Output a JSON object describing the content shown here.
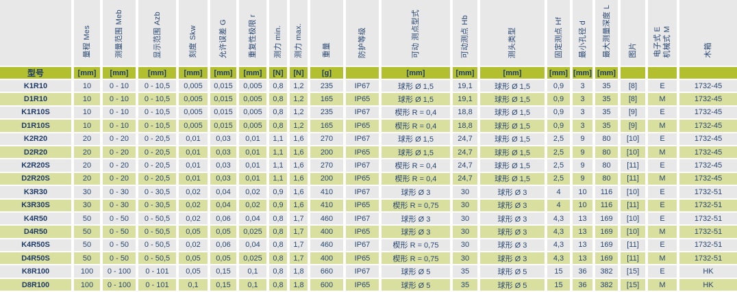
{
  "colors": {
    "header_band": "#b2c030",
    "row_green": "#d9df9e",
    "row_gray": "#e8e8e8",
    "text": "#274672",
    "text_dark": "#1e3a66",
    "gutter": "#ffffff"
  },
  "table": {
    "model_column_title": "型号",
    "columns": [
      {
        "key": "model",
        "label": "",
        "unit": "型号"
      },
      {
        "key": "range-mes",
        "label": "量程 Mes",
        "unit": "[mm]"
      },
      {
        "key": "range-meb",
        "label": "测量范围 Meb",
        "unit": "[mm]"
      },
      {
        "key": "range-azb",
        "label": "显示范围 Azb",
        "unit": "[mm]"
      },
      {
        "key": "scale-skw",
        "label": "刻度 Skw",
        "unit": "[mm]"
      },
      {
        "key": "error-g",
        "label": "允许误差 G",
        "unit": "[mm]"
      },
      {
        "key": "repeat-r",
        "label": "重复性极限 r",
        "unit": "[mm]"
      },
      {
        "key": "force-min",
        "label": "测力 min.",
        "unit": "[N]"
      },
      {
        "key": "force-max",
        "label": "测力 max.",
        "unit": "[N]"
      },
      {
        "key": "weight",
        "label": "重量",
        "unit": "[g]"
      },
      {
        "key": "ip-rating",
        "label": "防护等级",
        "unit": ""
      },
      {
        "key": "movable-tip-type",
        "label": "可动 测点型式",
        "unit": "[mm]"
      },
      {
        "key": "movable-tip-hb",
        "label": "可动测点 Hb",
        "unit": "[mm]"
      },
      {
        "key": "head-type",
        "label": "测头类型",
        "unit": "[mm]"
      },
      {
        "key": "fixed-tip-hf",
        "label": "固定测点 Hf",
        "unit": "[mm]"
      },
      {
        "key": "min-bore-d",
        "label": "最小孔径 d",
        "unit": "[mm]"
      },
      {
        "key": "max-depth-l",
        "label": "最大测量深度 L",
        "unit": "[mm]"
      },
      {
        "key": "picture",
        "label": "图片",
        "unit": ""
      },
      {
        "key": "electronic-mechanical",
        "label": "电子式 E\n机械式 M",
        "unit": ""
      },
      {
        "key": "wooden-box",
        "label": "木箱",
        "unit": ""
      }
    ],
    "rows": [
      [
        "K1R10",
        "10",
        "0 - 10",
        "0 - 10,5",
        "0,005",
        "0,015",
        "0,005",
        "0,8",
        "1,2",
        "235",
        "IP67",
        "球形 Ø 1,5",
        "19,1",
        "球形 Ø 1,5",
        "0,9",
        "3",
        "35",
        "[8]",
        "E",
        "1732-45"
      ],
      [
        "D1R10",
        "10",
        "0 - 10",
        "0 - 10,5",
        "0,005",
        "0,015",
        "0,005",
        "0,8",
        "1,2",
        "165",
        "IP65",
        "球形 Ø 1,5",
        "19,1",
        "球形 Ø 1,5",
        "0,9",
        "3",
        "35",
        "[8]",
        "M",
        "1732-45"
      ],
      [
        "K1R10S",
        "10",
        "0 - 10",
        "0 - 10,5",
        "0,005",
        "0,015",
        "0,005",
        "0,8",
        "1,2",
        "235",
        "IP67",
        "楔形 R = 0,4",
        "18,8",
        "球形 Ø 1,5",
        "0,9",
        "3",
        "35",
        "[9]",
        "E",
        "1732-45"
      ],
      [
        "D1R10S",
        "10",
        "0 - 10",
        "0 - 10,5",
        "0,005",
        "0,015",
        "0,005",
        "0,8",
        "1,2",
        "165",
        "IP65",
        "楔形 R = 0,4",
        "18,8",
        "球形 Ø 1,5",
        "0,9",
        "3",
        "35",
        "[9]",
        "M",
        "1732-45"
      ],
      [
        "K2R20",
        "20",
        "0 - 20",
        "0 - 20,5",
        "0,01",
        "0,03",
        "0,01",
        "1,1",
        "1,6",
        "270",
        "IP67",
        "球形 Ø 1,5",
        "24,7",
        "球形 Ø 1,5",
        "2,5",
        "9",
        "80",
        "[10]",
        "E",
        "1732-45"
      ],
      [
        "D2R20",
        "20",
        "0 - 20",
        "0 - 20,5",
        "0,01",
        "0,03",
        "0,01",
        "1,1",
        "1,6",
        "200",
        "IP65",
        "球形 Ø 1,5",
        "24,7",
        "球形 Ø 1,5",
        "2,5",
        "9",
        "80",
        "[10]",
        "M",
        "1732-45"
      ],
      [
        "K2R20S",
        "20",
        "0 - 20",
        "0 - 20,5",
        "0,01",
        "0,03",
        "0,01",
        "1,1",
        "1,6",
        "270",
        "IP67",
        "楔形 R = 0,4",
        "24,7",
        "球形 Ø 1,5",
        "2,5",
        "9",
        "80",
        "[11]",
        "E",
        "1732-45"
      ],
      [
        "D2R20S",
        "20",
        "0 - 20",
        "0 - 20,5",
        "0,01",
        "0,03",
        "0,01",
        "1,1",
        "1,6",
        "200",
        "IP65",
        "楔形 R = 0,4",
        "24,7",
        "球形 Ø 1,5",
        "2,5",
        "9",
        "80",
        "[11]",
        "M",
        "1732-45"
      ],
      [
        "K3R30",
        "30",
        "0 - 30",
        "0 - 30,5",
        "0,02",
        "0,04",
        "0,02",
        "0,9",
        "1,6",
        "410",
        "IP67",
        "球形 Ø 3",
        "30",
        "球形 Ø 3",
        "4",
        "10",
        "116",
        "[10]",
        "E",
        "1732-51"
      ],
      [
        "K3R30S",
        "30",
        "0 - 30",
        "0 - 30,5",
        "0,02",
        "0,04",
        "0,02",
        "0,9",
        "1,6",
        "410",
        "IP65",
        "楔形 R = 0,75",
        "30",
        "球形 Ø 3",
        "4",
        "10",
        "116",
        "[11]",
        "E",
        "1732-51"
      ],
      [
        "K4R50",
        "50",
        "0 - 50",
        "0 - 50,5",
        "0,02",
        "0,06",
        "0,04",
        "0,8",
        "1,7",
        "460",
        "IP67",
        "球形 Ø 3",
        "30",
        "球形 Ø 3",
        "4,3",
        "13",
        "169",
        "[10]",
        "E",
        "1732-51"
      ],
      [
        "D4R50",
        "50",
        "0 - 50",
        "0 - 50,5",
        "0,05",
        "0,05",
        "0,025",
        "0,8",
        "1,7",
        "400",
        "IP65",
        "球形 Ø 3",
        "30",
        "球形 Ø 3",
        "4,3",
        "13",
        "169",
        "[10]",
        "M",
        "1732-51"
      ],
      [
        "K4R50S",
        "50",
        "0 - 50",
        "0 - 50,5",
        "0,02",
        "0,06",
        "0,04",
        "0,8",
        "1,7",
        "460",
        "IP67",
        "楔形 R = 0,75",
        "30",
        "球形 Ø 3",
        "4,3",
        "13",
        "169",
        "[11]",
        "E",
        "1732-51"
      ],
      [
        "D4R50S",
        "50",
        "0 - 50",
        "0 - 50,5",
        "0,05",
        "0,05",
        "0,025",
        "0,8",
        "1,7",
        "400",
        "IP65",
        "楔形 R = 0,75",
        "30",
        "球形 Ø 3",
        "4,3",
        "13",
        "169",
        "[11]",
        "M",
        "1732-51"
      ],
      [
        "K8R100",
        "100",
        "0 - 100",
        "0 - 101",
        "0,05",
        "0,15",
        "0,1",
        "0,8",
        "1,8",
        "660",
        "IP67",
        "球形 Ø 5",
        "35",
        "球形 Ø 5",
        "15",
        "36",
        "382",
        "[15]",
        "E",
        "HK"
      ],
      [
        "D8R100",
        "100",
        "0 - 100",
        "0 - 101",
        "0,1",
        "0,15",
        "0,1",
        "0,8",
        "1,8",
        "600",
        "IP65",
        "球形 Ø 5",
        "35",
        "球形 Ø 5",
        "15",
        "36",
        "382",
        "[15]",
        "M",
        "HK"
      ]
    ]
  }
}
